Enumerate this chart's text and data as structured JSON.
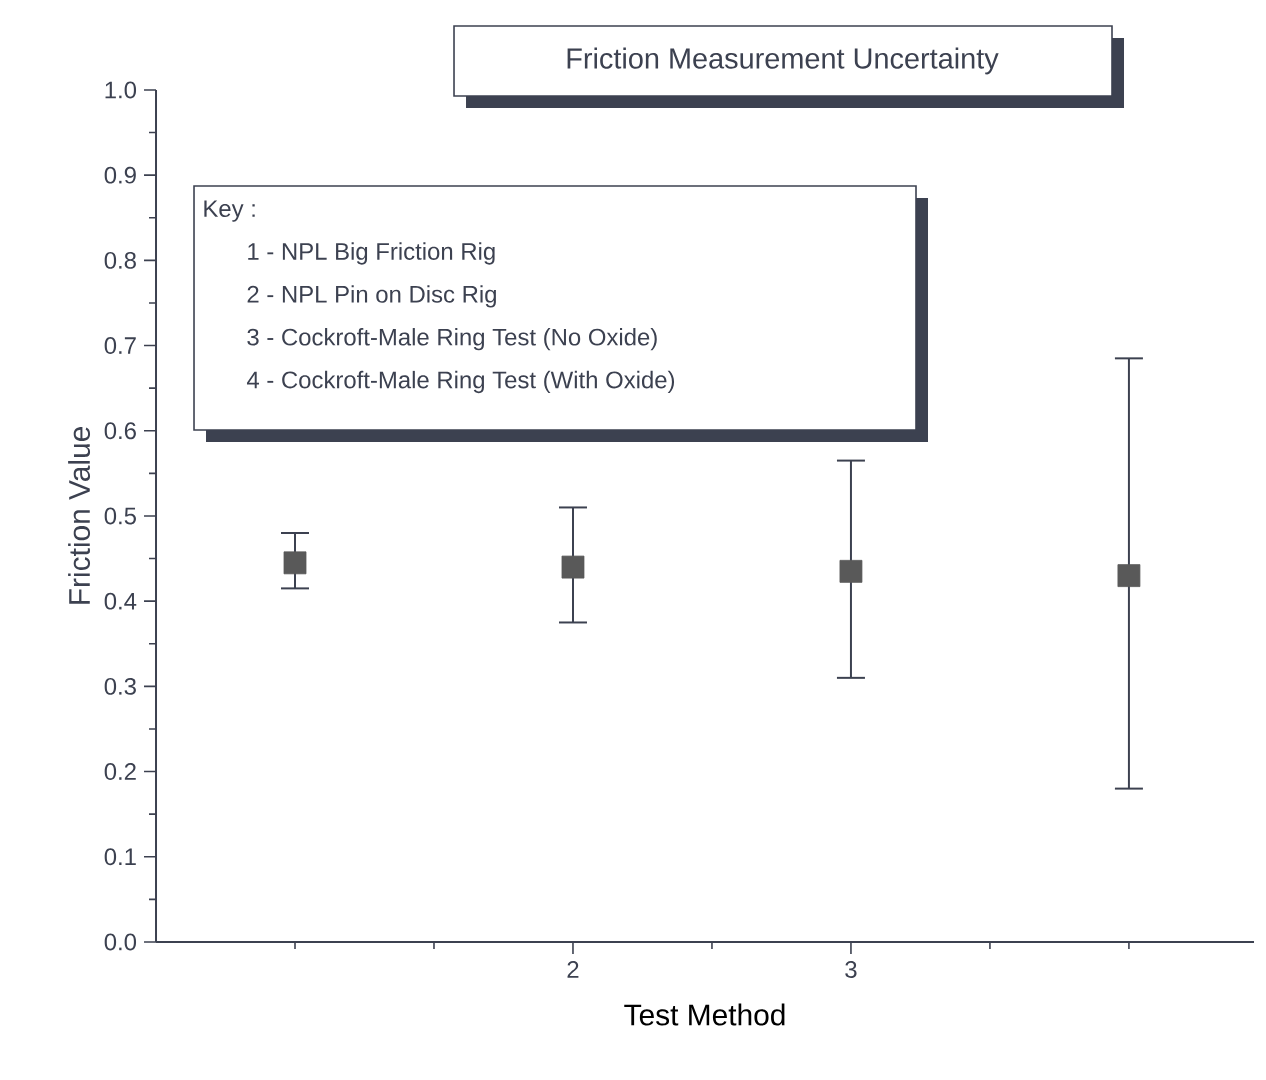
{
  "chart_data": {
    "type": "scatter",
    "title": "Friction Measurement Uncertainty",
    "xlabel": "Test Method",
    "ylabel": "Friction Value",
    "annotations": [
      "Key :",
      "1 - NPL Big Friction Rig",
      "2 - NPL Pin on Disc Rig",
      "3 - Cockroft-Male Ring Test (No Oxide)",
      "4 - Cockroft-Male Ring Test (With Oxide)"
    ],
    "x": [
      1,
      2,
      3,
      4
    ],
    "values": [
      0.445,
      0.44,
      0.435,
      0.43
    ],
    "errors": [
      [
        0.415,
        0.48
      ],
      [
        0.375,
        0.51
      ],
      [
        0.31,
        0.565
      ],
      [
        0.18,
        0.685
      ]
    ],
    "color": "#595959",
    "marker": "square",
    "xlim": [
      0.5,
      4.45
    ],
    "xticks": [
      {
        "value": 1,
        "label": null
      },
      {
        "value": 1.5,
        "label": null
      },
      2,
      {
        "value": 2.5,
        "label": null
      },
      3,
      {
        "value": 3.5,
        "label": null
      },
      {
        "value": 4,
        "label": null
      }
    ],
    "ylim": [
      0,
      1
    ],
    "yticks": [
      {
        "value": 0,
        "label": "0.0"
      },
      {
        "value": 0.05,
        "label": null
      },
      {
        "value": 0.1,
        "label": "0.1"
      },
      {
        "value": 0.15,
        "label": null
      },
      {
        "value": 0.2,
        "label": "0.2"
      },
      {
        "value": 0.25,
        "label": null
      },
      {
        "value": 0.3,
        "label": "0.3"
      },
      {
        "value": 0.35,
        "label": null
      },
      {
        "value": 0.4,
        "label": "0.4"
      },
      {
        "value": 0.45,
        "label": null
      },
      {
        "value": 0.5,
        "label": "0.5"
      },
      {
        "value": 0.55,
        "label": null
      },
      {
        "value": 0.6,
        "label": "0.6"
      },
      {
        "value": 0.65,
        "label": null
      },
      {
        "value": 0.7,
        "label": "0.7"
      },
      {
        "value": 0.75,
        "label": null
      },
      {
        "value": 0.8,
        "label": "0.8"
      },
      {
        "value": 0.85,
        "label": null
      },
      {
        "value": 0.9,
        "label": "0.9"
      },
      {
        "value": 0.95,
        "label": null
      },
      {
        "value": 1,
        "label": "1.0"
      }
    ]
  }
}
